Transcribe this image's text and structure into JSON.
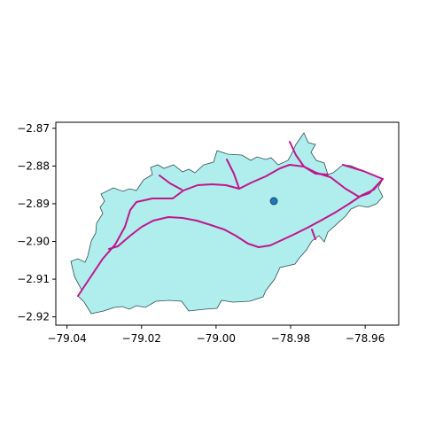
{
  "chart_data": {
    "type": "map",
    "x_ticks": [
      "−79.04",
      "−79.02",
      "−79.00",
      "−78.98",
      "−78.96"
    ],
    "y_ticks": [
      "−2.87",
      "−2.88",
      "−2.89",
      "−2.90",
      "−2.91",
      "−2.92"
    ],
    "xlim": [
      -79.043,
      -78.951
    ],
    "ylim": [
      -2.9222,
      -2.8684
    ],
    "grid": false,
    "colors": {
      "region_fill": "#b0eded",
      "region_edge": "#2f4f4f",
      "road": "#c0168c",
      "marker": "#1f77b4"
    },
    "marker": {
      "x": -78.9845,
      "y": -2.8893
    }
  }
}
